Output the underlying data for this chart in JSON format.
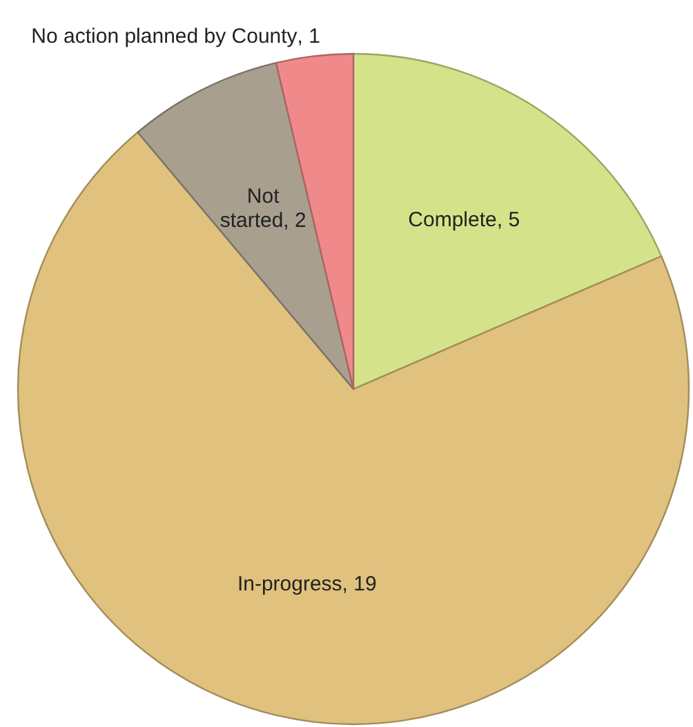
{
  "chart_data": {
    "type": "pie",
    "categories": [
      "Complete",
      "In-progress",
      "Not started",
      "No action planned by County"
    ],
    "values": [
      5,
      19,
      2,
      1
    ],
    "colors": [
      "#d4e38a",
      "#e0c17d",
      "#a89f8f",
      "#f08a8a"
    ],
    "value_labels": [
      ", 5",
      ", 19",
      ", 2",
      ", 1"
    ]
  }
}
